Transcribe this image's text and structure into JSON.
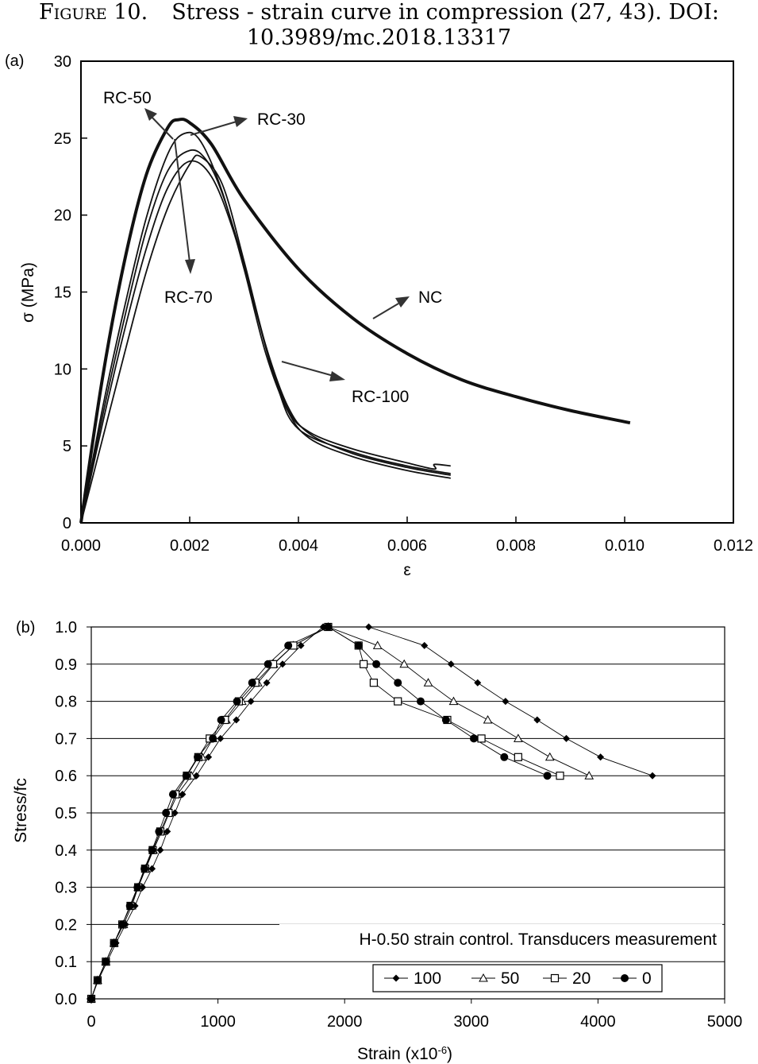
{
  "caption": {
    "label": "Figure 10.",
    "text1": "Stress - strain curve in compression (27, 43). DOI:",
    "text2": "10.3989/mc.2018.13317"
  },
  "chart_data": [
    {
      "type": "line",
      "panel": "(a)",
      "xlabel": "ε",
      "ylabel": "σ (MPa)",
      "xlim": [
        0,
        0.012
      ],
      "ylim": [
        0,
        30
      ],
      "xticks": [
        "0.000",
        "0.002",
        "0.004",
        "0.006",
        "0.008",
        "0.010",
        "0.012"
      ],
      "yticks": [
        "0",
        "5",
        "10",
        "15",
        "20",
        "25",
        "30"
      ],
      "grid": false,
      "series": [
        {
          "name": "NC",
          "x": [
            0,
            0.0004,
            0.0008,
            0.0012,
            0.0016,
            0.0018,
            0.002,
            0.0024,
            0.003,
            0.004,
            0.005,
            0.006,
            0.007,
            0.008,
            0.009,
            0.0101
          ],
          "y": [
            0,
            9.5,
            17,
            22.6,
            25.7,
            26.2,
            26.0,
            24.6,
            21.0,
            16.5,
            13.3,
            11.0,
            9.3,
            8.2,
            7.3,
            6.5
          ]
        },
        {
          "name": "RC-30",
          "x": [
            0,
            0.0004,
            0.0008,
            0.0012,
            0.0016,
            0.0019,
            0.0022,
            0.0026,
            0.003,
            0.0034,
            0.0038,
            0.0042,
            0.005,
            0.006,
            0.0068
          ],
          "y": [
            0,
            7.5,
            14,
            19.8,
            24.0,
            25.3,
            24.8,
            21.5,
            16.5,
            11.0,
            7.3,
            5.5,
            4.3,
            3.4,
            2.9
          ]
        },
        {
          "name": "RC-50",
          "x": [
            0,
            0.0004,
            0.0008,
            0.0012,
            0.0016,
            0.002,
            0.0023,
            0.0026,
            0.003,
            0.0034,
            0.0038,
            0.0042,
            0.005,
            0.006,
            0.0068
          ],
          "y": [
            0,
            7,
            13.3,
            19,
            22.9,
            24.2,
            23.6,
            21.4,
            16.8,
            11.5,
            7.6,
            5.8,
            4.5,
            3.6,
            3.1
          ]
        },
        {
          "name": "RC-70",
          "x": [
            0,
            0.0004,
            0.0008,
            0.0012,
            0.0016,
            0.002,
            0.0024,
            0.0028,
            0.0032,
            0.0036,
            0.004,
            0.005,
            0.006,
            0.0068
          ],
          "y": [
            0,
            6.5,
            12.5,
            17.8,
            21.8,
            23.5,
            22.5,
            19.0,
            14.0,
            9.0,
            6.1,
            4.6,
            3.7,
            3.2
          ]
        },
        {
          "name": "RC-100",
          "x": [
            0,
            0.0004,
            0.0008,
            0.0012,
            0.0016,
            0.002,
            0.0022,
            0.0026,
            0.003,
            0.0034,
            0.0038,
            0.0042,
            0.005,
            0.006,
            0.0065,
            0.0065,
            0.0068
          ],
          "y": [
            0,
            5.5,
            11,
            16.3,
            20.5,
            23.3,
            23.8,
            22.0,
            17.0,
            11.5,
            7.4,
            5.9,
            4.8,
            3.9,
            3.5,
            3.8,
            3.7
          ]
        }
      ],
      "annotations": [
        "RC-50",
        "RC-30",
        "RC-70",
        "NC",
        "RC-100"
      ]
    },
    {
      "type": "scatter",
      "panel": "(b)",
      "xlabel": "Strain (x10",
      "xlabel_sup": "-6",
      "xlabel_end": ")",
      "ylabel": "Stress/fc",
      "xlim": [
        0,
        5000
      ],
      "ylim": [
        0,
        1.0
      ],
      "xticks": [
        "0",
        "1000",
        "2000",
        "3000",
        "4000",
        "5000"
      ],
      "yticks": [
        "0.0",
        "0.1",
        "0.2",
        "0.3",
        "0.4",
        "0.5",
        "0.6",
        "0.7",
        "0.8",
        "0.9",
        "1.0"
      ],
      "grid": true,
      "note": "H-0.50 strain control. Transducers measurement",
      "legend_position": "bottom-right",
      "series": [
        {
          "name": "100",
          "marker": "diamond",
          "x": [
            0,
            55,
            125,
            195,
            270,
            345,
            405,
            480,
            545,
            600,
            660,
            720,
            830,
            925,
            1020,
            1145,
            1260,
            1385,
            1510,
            1655,
            1830,
            2190,
            2630,
            2840,
            3050,
            3270,
            3520,
            3750,
            4020,
            4430
          ],
          "y": [
            0,
            0.05,
            0.1,
            0.15,
            0.2,
            0.25,
            0.3,
            0.35,
            0.4,
            0.45,
            0.5,
            0.55,
            0.6,
            0.65,
            0.7,
            0.75,
            0.8,
            0.85,
            0.9,
            0.95,
            1.0,
            1.0,
            0.95,
            0.9,
            0.85,
            0.8,
            0.75,
            0.7,
            0.65,
            0.6
          ]
        },
        {
          "name": "50",
          "marker": "triangle",
          "x": [
            0,
            50,
            115,
            180,
            255,
            320,
            370,
            430,
            490,
            555,
            615,
            680,
            790,
            875,
            960,
            1065,
            1190,
            1315,
            1440,
            1595,
            1870,
            2260,
            2470,
            2660,
            2860,
            3130,
            3370,
            3620,
            3930
          ],
          "y": [
            0,
            0.05,
            0.1,
            0.15,
            0.2,
            0.25,
            0.3,
            0.35,
            0.4,
            0.45,
            0.5,
            0.55,
            0.6,
            0.65,
            0.7,
            0.75,
            0.8,
            0.85,
            0.9,
            0.95,
            1.0,
            0.95,
            0.9,
            0.85,
            0.8,
            0.75,
            0.7,
            0.65,
            0.6
          ]
        },
        {
          "name": "20",
          "marker": "square",
          "x": [
            0,
            50,
            115,
            180,
            245,
            310,
            370,
            425,
            485,
            545,
            610,
            665,
            755,
            845,
            935,
            1055,
            1165,
            1295,
            1435,
            1595,
            1870,
            2110,
            2150,
            2230,
            2420,
            2810,
            3080,
            3370,
            3700
          ],
          "y": [
            0,
            0.05,
            0.1,
            0.15,
            0.2,
            0.25,
            0.3,
            0.35,
            0.4,
            0.45,
            0.5,
            0.55,
            0.6,
            0.65,
            0.7,
            0.75,
            0.8,
            0.85,
            0.9,
            0.95,
            1.0,
            0.95,
            0.9,
            0.85,
            0.8,
            0.75,
            0.7,
            0.65,
            0.6
          ]
        },
        {
          "name": "0",
          "marker": "circle",
          "x": [
            0,
            50,
            115,
            180,
            245,
            305,
            365,
            420,
            480,
            535,
            590,
            645,
            750,
            840,
            960,
            1025,
            1150,
            1270,
            1395,
            1555,
            1870,
            2110,
            2250,
            2420,
            2600,
            2800,
            3020,
            3260,
            3600
          ],
          "y": [
            0,
            0.05,
            0.1,
            0.15,
            0.2,
            0.25,
            0.3,
            0.35,
            0.4,
            0.45,
            0.5,
            0.55,
            0.6,
            0.65,
            0.7,
            0.75,
            0.8,
            0.85,
            0.9,
            0.95,
            1.0,
            0.95,
            0.9,
            0.85,
            0.8,
            0.75,
            0.7,
            0.65,
            0.6
          ]
        }
      ]
    }
  ]
}
